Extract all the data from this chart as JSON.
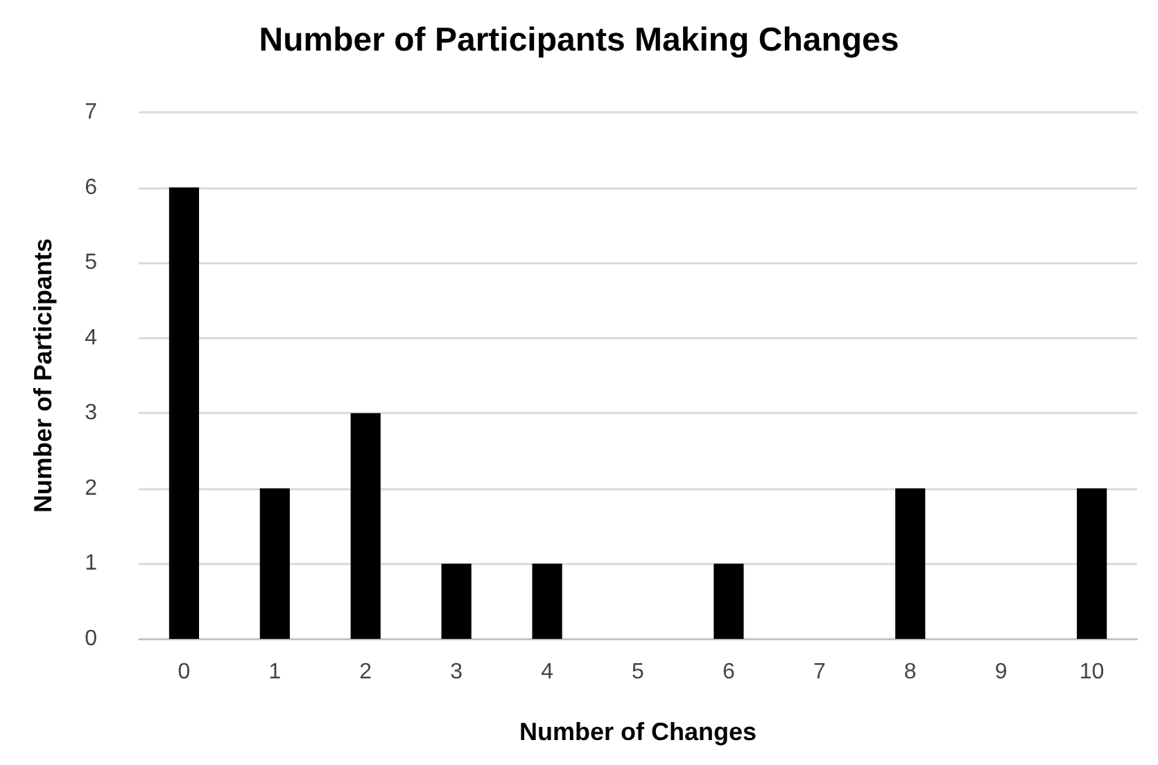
{
  "chart_data": {
    "type": "bar",
    "title": "Number of Participants Making Changes",
    "xlabel": "Number of Changes",
    "ylabel": "Number of Participants",
    "categories": [
      "0",
      "1",
      "2",
      "3",
      "4",
      "5",
      "6",
      "7",
      "8",
      "9",
      "10"
    ],
    "values": [
      6,
      2,
      3,
      1,
      1,
      0,
      1,
      0,
      2,
      0,
      2
    ],
    "color": "#000000",
    "ylim": [
      0,
      7
    ],
    "yticks": [
      0,
      1,
      2,
      3,
      4,
      5,
      6,
      7
    ],
    "grid": "y"
  }
}
